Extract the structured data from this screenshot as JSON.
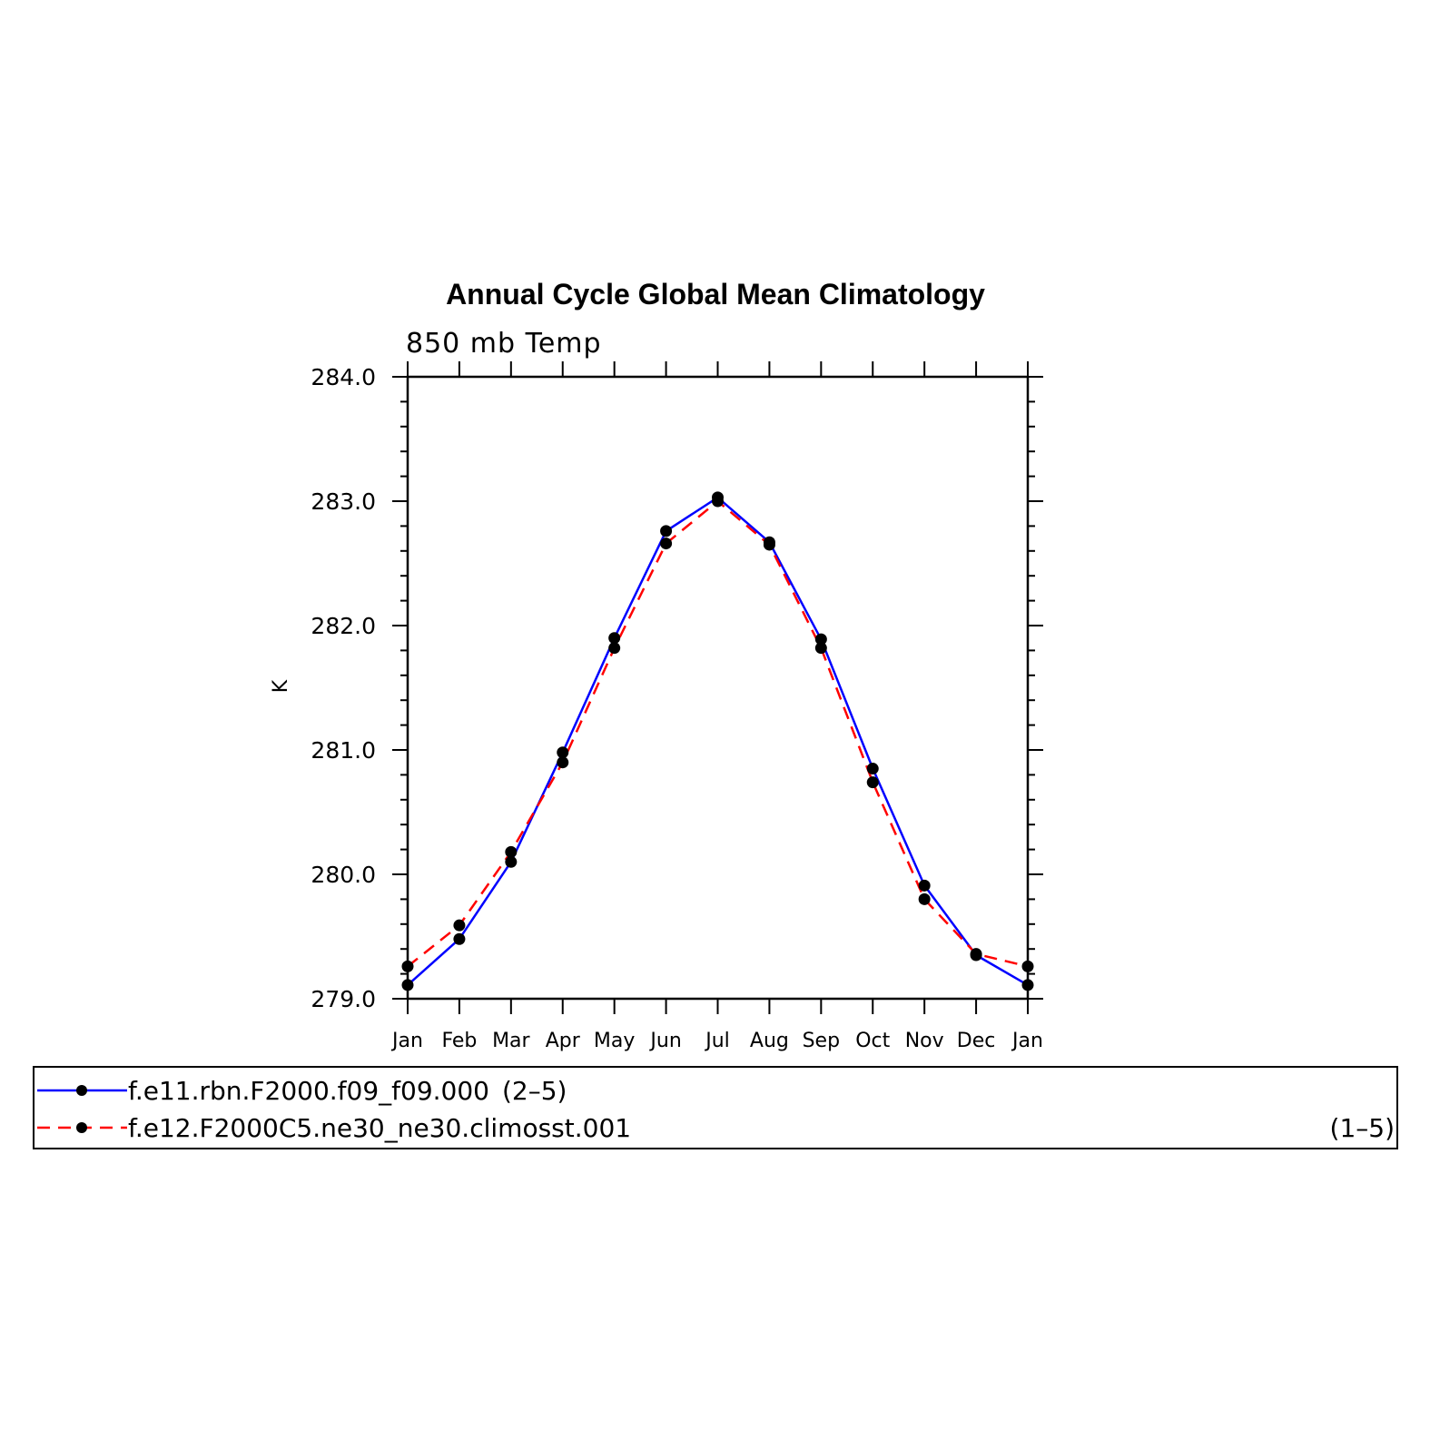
{
  "chart_data": {
    "type": "line",
    "title": "Annual Cycle Global Mean Climatology",
    "subtitle": "850 mb Temp",
    "xlabel": "",
    "ylabel": "K",
    "categories": [
      "Jan",
      "Feb",
      "Mar",
      "Apr",
      "May",
      "Jun",
      "Jul",
      "Aug",
      "Sep",
      "Oct",
      "Nov",
      "Dec",
      "Jan"
    ],
    "ylim": [
      279.0,
      284.0
    ],
    "yticks": [
      "279.0",
      "280.0",
      "281.0",
      "282.0",
      "283.0",
      "284.0"
    ],
    "grid": false,
    "legend_position": "bottom",
    "series": [
      {
        "name": "f.e11.rbn.F2000.f09_f09.000",
        "suffix": "(2–5)",
        "color": "#0000ff",
        "dash": "solid",
        "values": [
          279.11,
          279.48,
          280.1,
          280.98,
          281.9,
          282.76,
          283.03,
          282.67,
          281.89,
          280.85,
          279.91,
          279.35,
          279.11
        ]
      },
      {
        "name": "f.e12.F2000C5.ne30_ne30.climosst.001",
        "suffix": "(1–5)",
        "color": "#ff0000",
        "dash": "dashed",
        "values": [
          279.26,
          279.59,
          280.18,
          280.9,
          281.82,
          282.66,
          283.0,
          282.65,
          281.82,
          280.74,
          279.8,
          279.36,
          279.26
        ]
      }
    ]
  }
}
